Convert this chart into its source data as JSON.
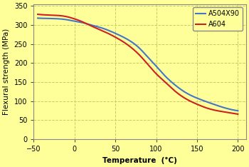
{
  "title": "",
  "xlabel": "Temperature  (°C)",
  "ylabel": "Flexural strength (MPa)",
  "xlim": [
    -50,
    210
  ],
  "ylim": [
    0,
    355
  ],
  "xticks": [
    -50,
    0,
    50,
    100,
    150,
    200
  ],
  "yticks": [
    0,
    50,
    100,
    150,
    200,
    250,
    300,
    350
  ],
  "background_color": "#FFFF99",
  "grid_color": "#CCCC66",
  "series": [
    {
      "label": "A504X90",
      "color": "#4477CC",
      "x": [
        -45,
        -30,
        -10,
        0,
        10,
        20,
        35,
        50,
        65,
        80,
        90,
        100,
        110,
        120,
        135,
        150,
        165,
        180,
        200
      ],
      "y": [
        318,
        317,
        314,
        310,
        306,
        300,
        291,
        278,
        262,
        238,
        215,
        192,
        168,
        148,
        124,
        108,
        96,
        85,
        75
      ]
    },
    {
      "label": "A604",
      "color": "#CC2222",
      "x": [
        -45,
        -30,
        -10,
        0,
        10,
        20,
        35,
        50,
        65,
        80,
        90,
        100,
        110,
        120,
        135,
        150,
        165,
        180,
        200
      ],
      "y": [
        328,
        326,
        322,
        316,
        308,
        298,
        284,
        268,
        248,
        220,
        196,
        172,
        152,
        132,
        108,
        92,
        80,
        73,
        66
      ]
    }
  ],
  "legend_loc": "upper right",
  "legend_fontsize": 7,
  "axis_label_fontsize": 7.5,
  "tick_fontsize": 7,
  "line_width": 1.5
}
